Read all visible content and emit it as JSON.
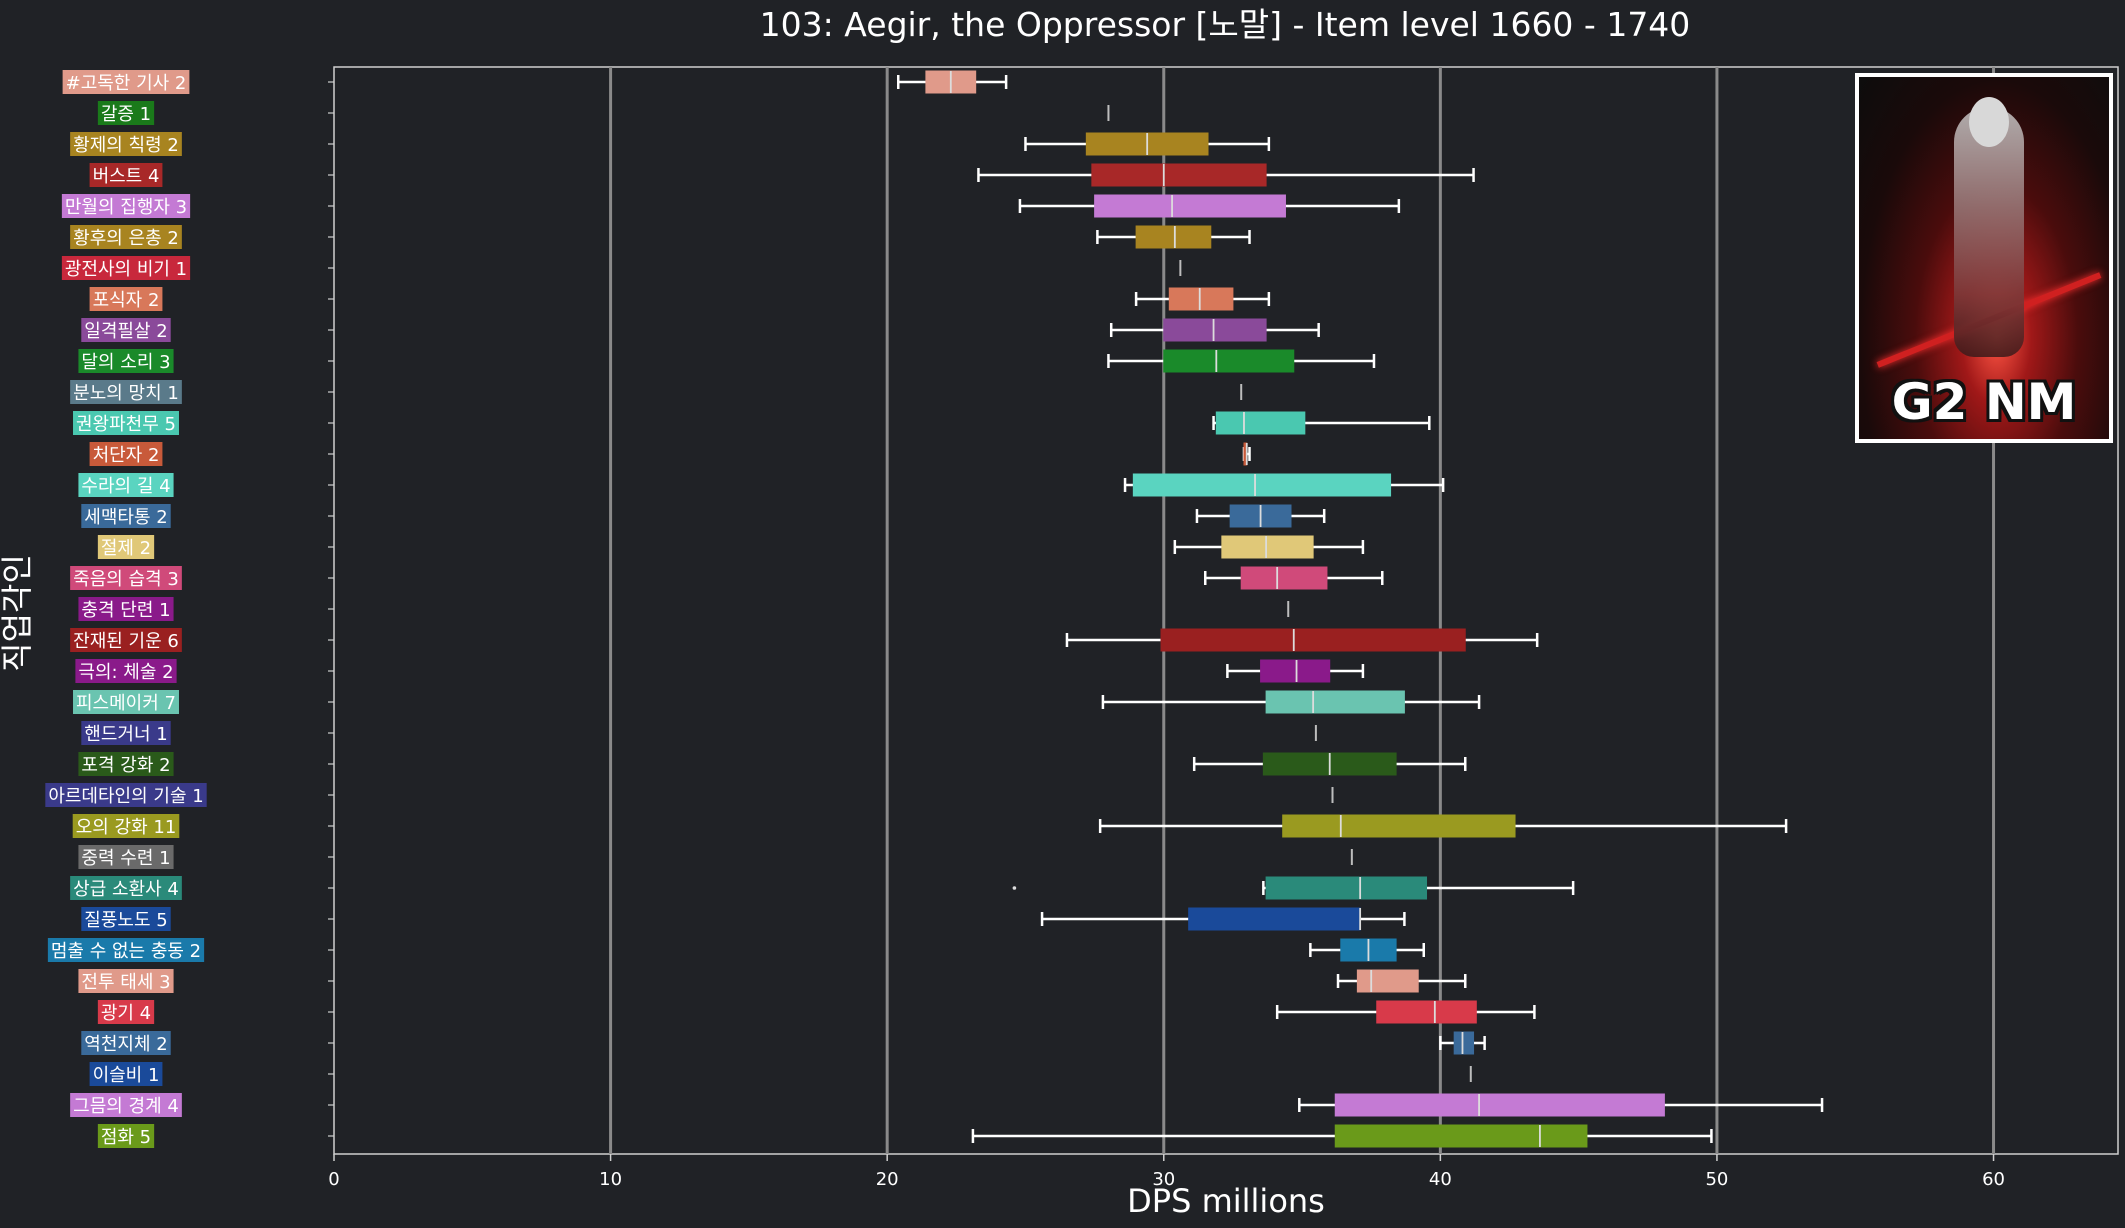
{
  "chart_data": {
    "type": "box",
    "orientation": "horizontal",
    "title": "103: Aegir, the Oppressor [노말] - Item level 1660 - 1740",
    "xlabel": "DPS millions",
    "ylabel": "직업각인",
    "xlim": [
      0,
      64.5
    ],
    "xticks": [
      0,
      10,
      20,
      30,
      40,
      50,
      60
    ],
    "grid": "vertical",
    "series": [
      {
        "label": "#고독한 기사 2",
        "color": "#e09a8a",
        "min": 20.4,
        "q1": 21.4,
        "median": 22.3,
        "q3": 23.2,
        "max": 24.3
      },
      {
        "label": "갈증 1",
        "color": "#1a7a1a",
        "min": 28.0,
        "q1": 28.0,
        "median": 28.0,
        "q3": 28.0,
        "max": 28.0
      },
      {
        "label": "황제의 칙령 2",
        "color": "#a88420",
        "min": 25.0,
        "q1": 27.2,
        "median": 29.4,
        "q3": 31.6,
        "max": 33.8
      },
      {
        "label": "버스트 4",
        "color": "#a82828",
        "min": 23.3,
        "q1": 27.4,
        "median": 30.0,
        "q3": 33.7,
        "max": 41.2
      },
      {
        "label": "만월의 집행자 3",
        "color": "#c47ad4",
        "min": 24.8,
        "q1": 27.5,
        "median": 30.3,
        "q3": 34.4,
        "max": 38.5
      },
      {
        "label": "황후의 은총 2",
        "color": "#a88420",
        "min": 27.6,
        "q1": 29.0,
        "median": 30.4,
        "q3": 31.7,
        "max": 33.1
      },
      {
        "label": "광전사의 비기 1",
        "color": "#c8283c",
        "min": 30.6,
        "q1": 30.6,
        "median": 30.6,
        "q3": 30.6,
        "max": 30.6
      },
      {
        "label": "포식자 2",
        "color": "#d8785a",
        "min": 29.0,
        "q1": 30.2,
        "median": 31.3,
        "q3": 32.5,
        "max": 33.8
      },
      {
        "label": "일격필살 2",
        "color": "#8a4a9a",
        "min": 28.1,
        "q1": 30.0,
        "median": 31.8,
        "q3": 33.7,
        "max": 35.6
      },
      {
        "label": "달의 소리 3",
        "color": "#1a8a2a",
        "min": 28.0,
        "q1": 30.0,
        "median": 31.9,
        "q3": 34.7,
        "max": 37.6
      },
      {
        "label": "분노의 망치 1",
        "color": "#5a7a8a",
        "min": 32.8,
        "q1": 32.8,
        "median": 32.8,
        "q3": 32.8,
        "max": 32.8
      },
      {
        "label": "권왕파천무 5",
        "color": "#4ac8b0",
        "min": 31.8,
        "q1": 31.9,
        "median": 32.9,
        "q3": 35.1,
        "max": 39.6
      },
      {
        "label": "처단자 2",
        "color": "#c85a3a",
        "min": 32.9,
        "q1": 32.9,
        "median": 33.0,
        "q3": 33.0,
        "max": 33.1
      },
      {
        "label": "수라의 길 4",
        "color": "#5ad4c0",
        "min": 28.6,
        "q1": 28.9,
        "median": 33.3,
        "q3": 38.2,
        "max": 40.1
      },
      {
        "label": "세맥타통 2",
        "color": "#3a6a9a",
        "min": 31.2,
        "q1": 32.4,
        "median": 33.5,
        "q3": 34.6,
        "max": 35.8
      },
      {
        "label": "절제 2",
        "color": "#e0c878",
        "min": 30.4,
        "q1": 32.1,
        "median": 33.7,
        "q3": 35.4,
        "max": 37.2
      },
      {
        "label": "죽음의 습격 3",
        "color": "#d04a7a",
        "min": 31.5,
        "q1": 32.8,
        "median": 34.1,
        "q3": 35.9,
        "max": 37.9
      },
      {
        "label": "충격 단련 1",
        "color": "#8a1a8a",
        "min": 34.5,
        "q1": 34.5,
        "median": 34.5,
        "q3": 34.5,
        "max": 34.5
      },
      {
        "label": "잔재된 기운 6",
        "color": "#9a2020",
        "min": 26.5,
        "q1": 29.9,
        "median": 34.7,
        "q3": 40.9,
        "max": 43.5
      },
      {
        "label": "극의: 체술 2",
        "color": "#8a1a8a",
        "min": 32.3,
        "q1": 33.5,
        "median": 34.8,
        "q3": 36.0,
        "max": 37.2
      },
      {
        "label": "피스메이커 7",
        "color": "#6ac4b0",
        "min": 27.8,
        "q1": 33.7,
        "median": 35.4,
        "q3": 38.7,
        "max": 41.4
      },
      {
        "label": "핸드거너 1",
        "color": "#3a3a8a",
        "min": 35.5,
        "q1": 35.5,
        "median": 35.5,
        "q3": 35.5,
        "max": 35.5
      },
      {
        "label": "포격 강화 2",
        "color": "#2a5a1a",
        "min": 31.1,
        "q1": 33.6,
        "median": 36.0,
        "q3": 38.4,
        "max": 40.9
      },
      {
        "label": "아르데타인의 기술 1",
        "color": "#3a3a8a",
        "min": 36.1,
        "q1": 36.1,
        "median": 36.1,
        "q3": 36.1,
        "max": 36.1
      },
      {
        "label": "오의 강화 11",
        "color": "#9a9a20",
        "min": 27.7,
        "q1": 34.3,
        "median": 36.4,
        "q3": 42.7,
        "max": 52.5
      },
      {
        "label": "중력 수련 1",
        "color": "#6a6a6a",
        "min": 36.8,
        "q1": 36.8,
        "median": 36.8,
        "q3": 36.8,
        "max": 36.8
      },
      {
        "label": "상급 소환사 4",
        "color": "#2a8a7a",
        "min": 33.6,
        "q1": 33.7,
        "median": 37.1,
        "q3": 39.5,
        "max": 44.8
      },
      {
        "label": "질풍노도 5",
        "color": "#1a4a9a",
        "min": 25.6,
        "q1": 30.9,
        "median": 37.1,
        "q3": 37.1,
        "max": 38.7
      },
      {
        "label": "멈출 수 없는 충동 2",
        "color": "#1a7aaa",
        "min": 35.3,
        "q1": 36.4,
        "median": 37.4,
        "q3": 38.4,
        "max": 39.4
      },
      {
        "label": "전투 태세 3",
        "color": "#e09a8a",
        "min": 36.3,
        "q1": 37.0,
        "median": 37.5,
        "q3": 39.2,
        "max": 40.9
      },
      {
        "label": "광기 4",
        "color": "#d83a4a",
        "min": 34.1,
        "q1": 37.7,
        "median": 39.8,
        "q3": 41.3,
        "max": 43.4
      },
      {
        "label": "역천지체 2",
        "color": "#3a6a9a",
        "min": 40.0,
        "q1": 40.5,
        "median": 40.8,
        "q3": 41.2,
        "max": 41.6
      },
      {
        "label": "이슬비 1",
        "color": "#1a4a9a",
        "min": 41.1,
        "q1": 41.1,
        "median": 41.1,
        "q3": 41.1,
        "max": 41.1
      },
      {
        "label": "그믐의 경계 4",
        "color": "#c47ad4",
        "min": 34.9,
        "q1": 36.2,
        "median": 41.4,
        "q3": 48.1,
        "max": 53.8
      },
      {
        "label": "점화 5",
        "color": "#6a9a1a",
        "min": 23.1,
        "q1": 36.2,
        "median": 43.6,
        "q3": 45.3,
        "max": 49.8
      }
    ],
    "outliers": [
      {
        "category": "상급 소환사 4",
        "value": 24.6
      }
    ]
  },
  "overlay": {
    "badge_text": "G2 NM"
  }
}
